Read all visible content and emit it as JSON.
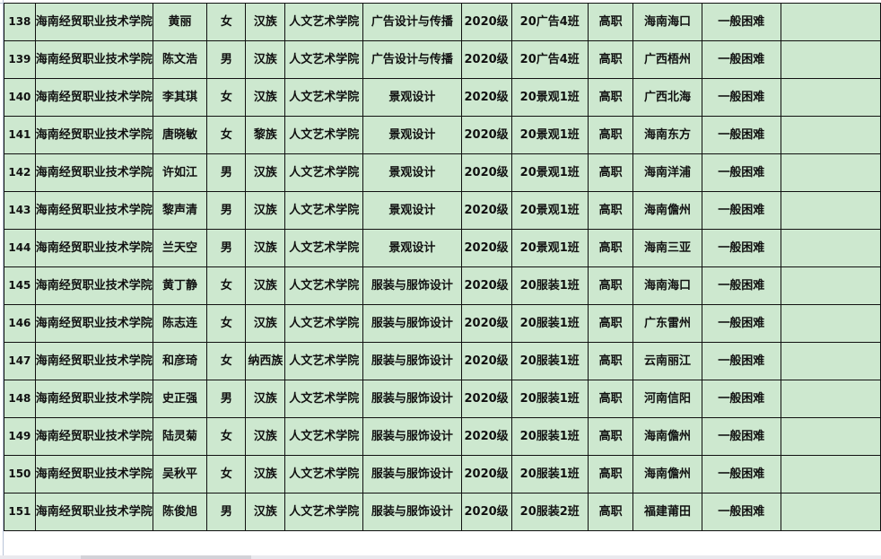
{
  "table": {
    "fill_color": "#cde8cf",
    "rows": [
      {
        "no": "138",
        "school": "海南经贸职业技术学院",
        "name": "黄丽",
        "gender": "女",
        "ethnicity": "汉族",
        "college": "人文艺术学院",
        "major": "广告设计与传播",
        "grade": "2020级",
        "class": "20广告4班",
        "level": "高职",
        "origin": "海南海口",
        "difficulty": "一般困难",
        "note": ""
      },
      {
        "no": "139",
        "school": "海南经贸职业技术学院",
        "name": "陈文浩",
        "gender": "男",
        "ethnicity": "汉族",
        "college": "人文艺术学院",
        "major": "广告设计与传播",
        "grade": "2020级",
        "class": "20广告4班",
        "level": "高职",
        "origin": "广西梧州",
        "difficulty": "一般困难",
        "note": ""
      },
      {
        "no": "140",
        "school": "海南经贸职业技术学院",
        "name": "李其琪",
        "gender": "女",
        "ethnicity": "汉族",
        "college": "人文艺术学院",
        "major": "景观设计",
        "grade": "2020级",
        "class": "20景观1班",
        "level": "高职",
        "origin": "广西北海",
        "difficulty": "一般困难",
        "note": ""
      },
      {
        "no": "141",
        "school": "海南经贸职业技术学院",
        "name": "唐晓敏",
        "gender": "女",
        "ethnicity": "黎族",
        "college": "人文艺术学院",
        "major": "景观设计",
        "grade": "2020级",
        "class": "20景观1班",
        "level": "高职",
        "origin": "海南东方",
        "difficulty": "一般困难",
        "note": ""
      },
      {
        "no": "142",
        "school": "海南经贸职业技术学院",
        "name": "许如江",
        "gender": "男",
        "ethnicity": "汉族",
        "college": "人文艺术学院",
        "major": "景观设计",
        "grade": "2020级",
        "class": "20景观1班",
        "level": "高职",
        "origin": "海南洋浦",
        "difficulty": "一般困难",
        "note": ""
      },
      {
        "no": "143",
        "school": "海南经贸职业技术学院",
        "name": "黎声清",
        "gender": "男",
        "ethnicity": "汉族",
        "college": "人文艺术学院",
        "major": "景观设计",
        "grade": "2020级",
        "class": "20景观1班",
        "level": "高职",
        "origin": "海南儋州",
        "difficulty": "一般困难",
        "note": ""
      },
      {
        "no": "144",
        "school": "海南经贸职业技术学院",
        "name": "兰天空",
        "gender": "男",
        "ethnicity": "汉族",
        "college": "人文艺术学院",
        "major": "景观设计",
        "grade": "2020级",
        "class": "20景观1班",
        "level": "高职",
        "origin": "海南三亚",
        "difficulty": "一般困难",
        "note": ""
      },
      {
        "no": "145",
        "school": "海南经贸职业技术学院",
        "name": "黄丁静",
        "gender": "女",
        "ethnicity": "汉族",
        "college": "人文艺术学院",
        "major": "服装与服饰设计",
        "grade": "2020级",
        "class": "20服装1班",
        "level": "高职",
        "origin": "海南海口",
        "difficulty": "一般困难",
        "note": ""
      },
      {
        "no": "146",
        "school": "海南经贸职业技术学院",
        "name": "陈志连",
        "gender": "女",
        "ethnicity": "汉族",
        "college": "人文艺术学院",
        "major": "服装与服饰设计",
        "grade": "2020级",
        "class": "20服装1班",
        "level": "高职",
        "origin": "广东雷州",
        "difficulty": "一般困难",
        "note": ""
      },
      {
        "no": "147",
        "school": "海南经贸职业技术学院",
        "name": "和彦琦",
        "gender": "女",
        "ethnicity": "纳西族",
        "college": "人文艺术学院",
        "major": "服装与服饰设计",
        "grade": "2020级",
        "class": "20服装1班",
        "level": "高职",
        "origin": "云南丽江",
        "difficulty": "一般困难",
        "note": ""
      },
      {
        "no": "148",
        "school": "海南经贸职业技术学院",
        "name": "史正强",
        "gender": "男",
        "ethnicity": "汉族",
        "college": "人文艺术学院",
        "major": "服装与服饰设计",
        "grade": "2020级",
        "class": "20服装1班",
        "level": "高职",
        "origin": "河南信阳",
        "difficulty": "一般困难",
        "note": ""
      },
      {
        "no": "149",
        "school": "海南经贸职业技术学院",
        "name": "陆灵菊",
        "gender": "女",
        "ethnicity": "汉族",
        "college": "人文艺术学院",
        "major": "服装与服饰设计",
        "grade": "2020级",
        "class": "20服装1班",
        "level": "高职",
        "origin": "海南儋州",
        "difficulty": "一般困难",
        "note": ""
      },
      {
        "no": "150",
        "school": "海南经贸职业技术学院",
        "name": "吴秋平",
        "gender": "女",
        "ethnicity": "汉族",
        "college": "人文艺术学院",
        "major": "服装与服饰设计",
        "grade": "2020级",
        "class": "20服装1班",
        "level": "高职",
        "origin": "海南儋州",
        "difficulty": "一般困难",
        "note": ""
      },
      {
        "no": "151",
        "school": "海南经贸职业技术学院",
        "name": "陈俊旭",
        "gender": "男",
        "ethnicity": "汉族",
        "college": "人文艺术学院",
        "major": "服装与服饰设计",
        "grade": "2020级",
        "class": "20服装2班",
        "level": "高职",
        "origin": "福建莆田",
        "difficulty": "一般困难",
        "note": ""
      }
    ]
  }
}
